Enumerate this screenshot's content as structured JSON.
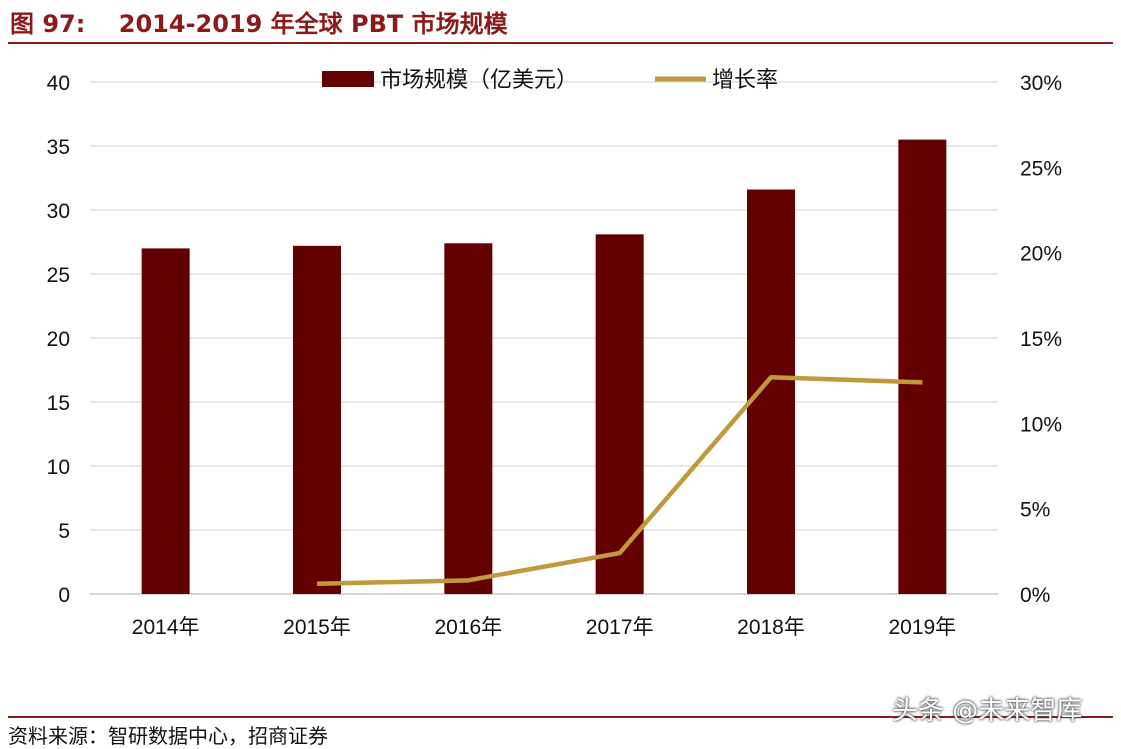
{
  "figure": {
    "title": "图 97:    2014-2019 年全球 PBT 市场规模",
    "source": "资料来源：智研数据中心，招商证券",
    "watermark": "头条 @未来智库",
    "colors": {
      "bar": "#650000",
      "line": "#C09A3A",
      "title": "#8B1A1A"
    }
  },
  "chart_data": {
    "type": "bar",
    "categories": [
      "2014年",
      "2015年",
      "2016年",
      "2017年",
      "2018年",
      "2019年"
    ],
    "series": [
      {
        "name": "市场规模（亿美元）",
        "type": "bar",
        "axis": "left",
        "values": [
          27.0,
          27.2,
          27.4,
          28.1,
          31.6,
          35.5
        ]
      },
      {
        "name": "增长率",
        "type": "line",
        "axis": "right",
        "values": [
          null,
          0.6,
          0.8,
          2.4,
          12.7,
          12.4
        ]
      }
    ],
    "y_left": {
      "ylim": [
        0,
        40
      ],
      "ticks": [
        0,
        5,
        10,
        15,
        20,
        25,
        30,
        35,
        40
      ],
      "tick_labels": [
        "0",
        "5",
        "10",
        "15",
        "20",
        "25",
        "30",
        "35",
        "40"
      ]
    },
    "y_right": {
      "ylim": [
        0,
        30
      ],
      "ticks": [
        0,
        5,
        10,
        15,
        20,
        25,
        30
      ],
      "tick_labels": [
        "0%",
        "5%",
        "10%",
        "15%",
        "20%",
        "25%",
        "30%"
      ]
    },
    "grid": true,
    "legend": "top-center",
    "title": "",
    "xlabel": "",
    "ylabel": ""
  }
}
